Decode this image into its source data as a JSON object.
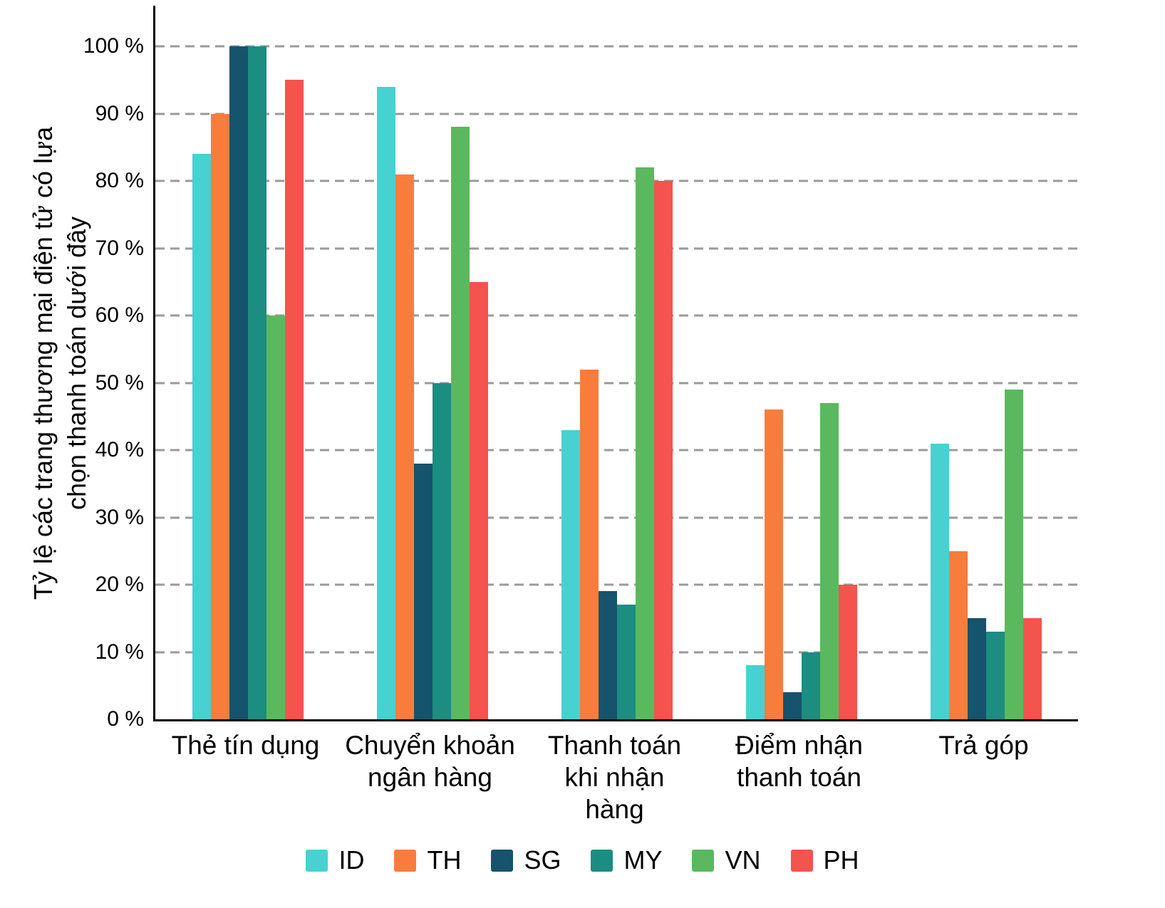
{
  "chart_data": {
    "type": "bar",
    "title": "",
    "ylabel": "Tỷ lệ các trang thương mại điện tử có lựa chọn thanh toán dưới đây",
    "xlabel": "",
    "ylim": [
      0,
      100
    ],
    "ytick_step": 10,
    "ytick_suffix": " %",
    "grid": "horizontal-dashed",
    "grid_color": "#9a9a9a",
    "axis_color": "#000000",
    "legend_position": "bottom",
    "categories": [
      "Thẻ tín dụng",
      "Chuyển khoản ngân hàng",
      "Thanh toán khi nhận hàng",
      "Điểm nhận thanh toán",
      "Trả góp"
    ],
    "series": [
      {
        "name": "ID",
        "color": "#47d1d1",
        "values": [
          84,
          94,
          43,
          8,
          41
        ]
      },
      {
        "name": "TH",
        "color": "#f87d3c",
        "values": [
          90,
          81,
          52,
          46,
          25
        ]
      },
      {
        "name": "SG",
        "color": "#16536c",
        "values": [
          100,
          38,
          19,
          4,
          15
        ]
      },
      {
        "name": "MY",
        "color": "#1b8d81",
        "values": [
          100,
          50,
          17,
          10,
          13
        ]
      },
      {
        "name": "VN",
        "color": "#5ab95e",
        "values": [
          60,
          88,
          82,
          47,
          49
        ]
      },
      {
        "name": "PH",
        "color": "#f4534e",
        "values": [
          95,
          65,
          80,
          20,
          15
        ]
      }
    ]
  }
}
